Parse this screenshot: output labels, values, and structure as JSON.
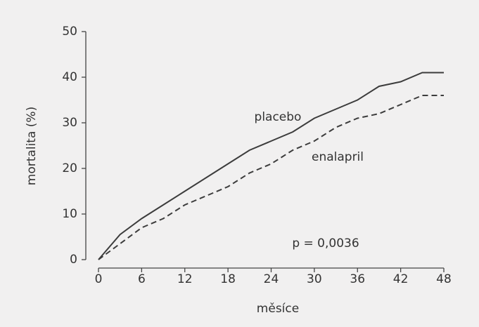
{
  "chart_data": {
    "type": "line",
    "x_label": "měsíce",
    "y_label": "mortalita (%)",
    "annotation": "p = 0,0036",
    "x": [
      0,
      3,
      6,
      9,
      12,
      15,
      18,
      21,
      24,
      27,
      30,
      33,
      36,
      39,
      42,
      45,
      48
    ],
    "series": [
      {
        "name": "placebo",
        "color": "#3c3c3c",
        "dash": false,
        "values": [
          0,
          5.5,
          9,
          12,
          15,
          18,
          21,
          24,
          26,
          28,
          31,
          33,
          35,
          38,
          39,
          41,
          41
        ]
      },
      {
        "name": "enalapril",
        "color": "#3c3c3c",
        "dash": true,
        "values": [
          0,
          3.5,
          7,
          9,
          12,
          14,
          16,
          19,
          21,
          24,
          26,
          29,
          31,
          32,
          34,
          36,
          36
        ]
      }
    ],
    "xlim": [
      0,
      48
    ],
    "xticks": [
      0,
      6,
      12,
      18,
      24,
      30,
      36,
      42,
      48
    ],
    "ylim": [
      0,
      50
    ],
    "yticks": [
      0,
      10,
      20,
      30,
      40,
      50
    ]
  }
}
